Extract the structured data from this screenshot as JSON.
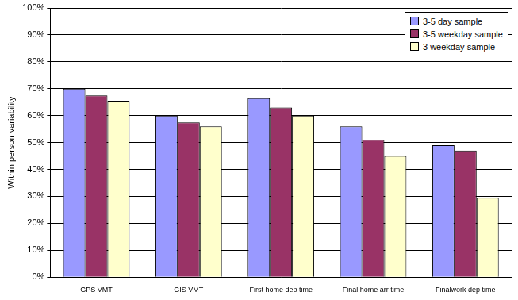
{
  "chart_data": {
    "type": "bar",
    "y_label": "Within person variability",
    "categories": [
      "GPS VMT",
      "GIS VMT",
      "First home dep time",
      "Final home arr time",
      "Finalwork dep time"
    ],
    "series": [
      {
        "name": "3-5 day sample",
        "color": "#9999ff",
        "values": [
          70,
          60,
          66.5,
          56,
          49
        ]
      },
      {
        "name": "3-5 weekday sample",
        "color": "#993366",
        "values": [
          67.5,
          57.5,
          63,
          51,
          47
        ]
      },
      {
        "name": "3 weekday sample",
        "color": "#ffffcc",
        "values": [
          65.5,
          56,
          60,
          45,
          29.5
        ]
      }
    ],
    "ylim": [
      0,
      100
    ],
    "yticks": [
      {
        "value": 0,
        "label": "0%"
      },
      {
        "value": 10,
        "label": "10%"
      },
      {
        "value": 20,
        "label": "20%"
      },
      {
        "value": 30,
        "label": "30%"
      },
      {
        "value": 40,
        "label": "40%"
      },
      {
        "value": 50,
        "label": "50%"
      },
      {
        "value": 60,
        "label": "60%"
      },
      {
        "value": 70,
        "label": "70%"
      },
      {
        "value": 80,
        "label": "80%"
      },
      {
        "value": 90,
        "label": "90%"
      },
      {
        "value": 100,
        "label": "100%"
      }
    ],
    "grid": true,
    "legend": "top-right"
  }
}
